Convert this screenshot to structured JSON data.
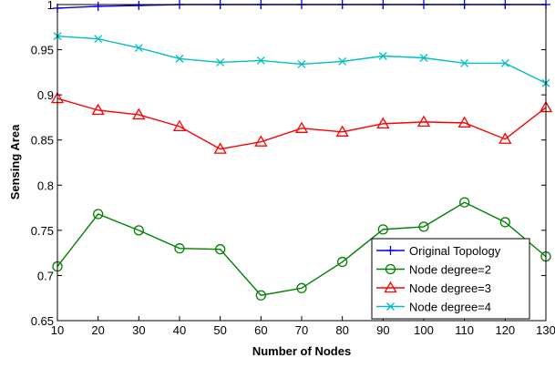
{
  "chart_data": {
    "type": "line",
    "xlabel": "Number of Nodes",
    "ylabel": "Sensing Area",
    "xlim": [
      10,
      130
    ],
    "ylim": [
      0.65,
      1.0
    ],
    "x": [
      10,
      20,
      30,
      40,
      50,
      60,
      70,
      80,
      90,
      100,
      110,
      120,
      130
    ],
    "x_ticks": [
      10,
      20,
      30,
      40,
      50,
      60,
      70,
      80,
      90,
      100,
      110,
      120,
      130
    ],
    "y_ticks": [
      0.65,
      0.7,
      0.75,
      0.8,
      0.85,
      0.9,
      0.95,
      1
    ],
    "grid": false,
    "legend_position": "bottom-right",
    "series": [
      {
        "name": "Original Topology",
        "color": "#0000ff",
        "marker": "plus",
        "values": [
          0.996,
          0.998,
          0.999,
          1.0,
          1.0,
          1.0,
          1.0,
          1.0,
          1.0,
          1.0,
          1.0,
          1.0,
          1.0
        ]
      },
      {
        "name": "Node degree=2",
        "color": "#008000",
        "marker": "circle",
        "values": [
          0.71,
          0.768,
          0.75,
          0.73,
          0.729,
          0.678,
          0.686,
          0.715,
          0.751,
          0.754,
          0.781,
          0.759,
          0.721
        ]
      },
      {
        "name": "Node degree=3",
        "color": "#ff0000",
        "marker": "triangle",
        "values": [
          0.896,
          0.883,
          0.878,
          0.865,
          0.84,
          0.848,
          0.863,
          0.859,
          0.868,
          0.87,
          0.869,
          0.851,
          0.886
        ]
      },
      {
        "name": "Node degree=4",
        "color": "#00bfbf",
        "marker": "x",
        "values": [
          0.965,
          0.962,
          0.952,
          0.94,
          0.936,
          0.938,
          0.934,
          0.937,
          0.943,
          0.941,
          0.935,
          0.935,
          0.913
        ]
      }
    ]
  }
}
